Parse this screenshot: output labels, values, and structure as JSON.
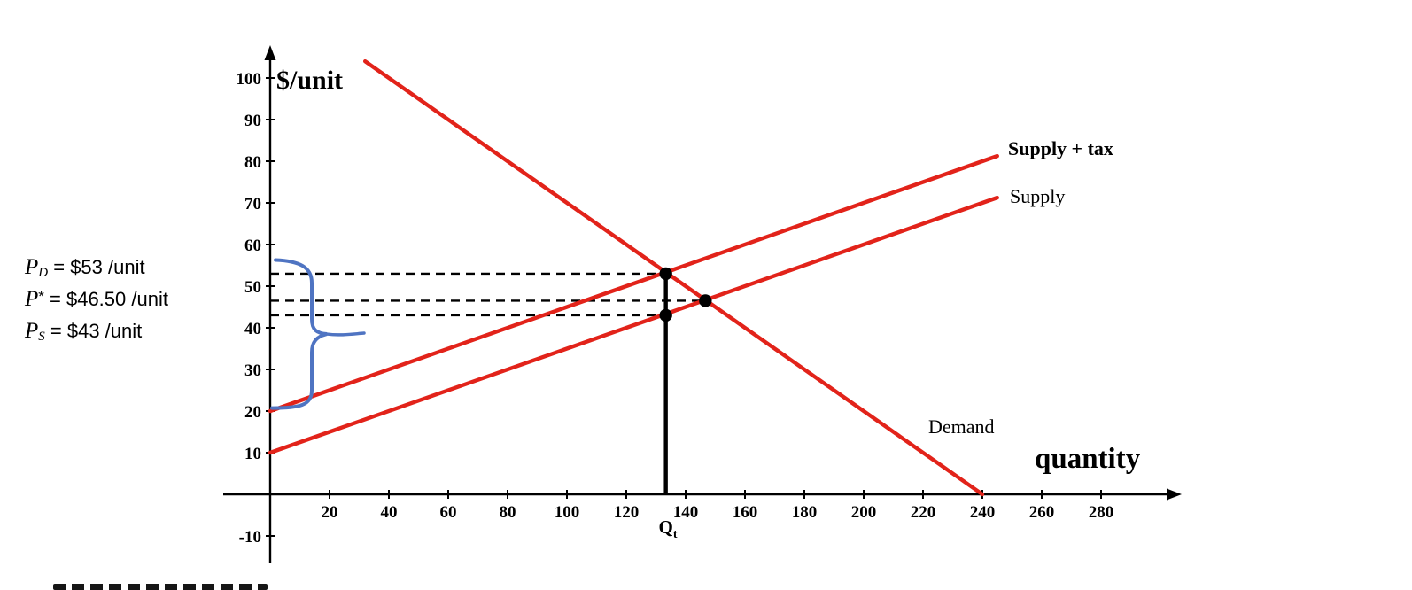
{
  "colors": {
    "curve": "#e2231a",
    "axis": "#000000",
    "dashed": "#000000",
    "brace": "#4f74c2",
    "point": "#000000"
  },
  "labels": {
    "qt": {
      "base": "Q",
      "sub": "t"
    },
    "price_annotations": [
      {
        "sym": "P",
        "sub": "D",
        "rest": " = $53 /unit"
      },
      {
        "sym": "P",
        "sup": "*",
        "rest": " = $46.50 /unit"
      },
      {
        "sym": "P",
        "sub": "S",
        "rest": " = $43 /unit"
      }
    ]
  },
  "chart_data": {
    "type": "line",
    "xlabel": "quantity",
    "ylabel": "$/unit",
    "xlim": [
      0,
      300
    ],
    "ylim": [
      -10,
      104
    ],
    "x_ticks": [
      20,
      40,
      60,
      80,
      100,
      120,
      140,
      160,
      180,
      200,
      220,
      240,
      260,
      280
    ],
    "y_ticks": [
      10,
      20,
      30,
      40,
      50,
      60,
      70,
      80,
      90,
      100
    ],
    "below_axis_tick": -10,
    "grid": false,
    "series": [
      {
        "name": "Demand",
        "points": [
          [
            32,
            104
          ],
          [
            240,
            0
          ]
        ]
      },
      {
        "name": "Supply",
        "points": [
          [
            0,
            10
          ],
          [
            245,
            71.25
          ]
        ]
      },
      {
        "name": "Supply + tax",
        "points": [
          [
            0,
            20
          ],
          [
            245,
            81.25
          ]
        ]
      }
    ],
    "dashed_guides": [
      {
        "price": 53,
        "q_end": 133.33
      },
      {
        "price": 46.5,
        "q_end": 146.67
      },
      {
        "price": 43,
        "q_end": 133.33
      }
    ],
    "vertical_guide": {
      "q": 133.33,
      "p_top": 53
    },
    "key_points": [
      {
        "name": "consumer-price-at-Qt",
        "q": 133.33,
        "p": 53
      },
      {
        "name": "producer-price-at-Qt",
        "q": 133.33,
        "p": 43
      },
      {
        "name": "pre-tax-equilibrium",
        "q": 146.67,
        "p": 46.5
      }
    ],
    "tax_per_unit_brace": {
      "p_top": 56.5,
      "p_bottom": 20.5
    }
  }
}
